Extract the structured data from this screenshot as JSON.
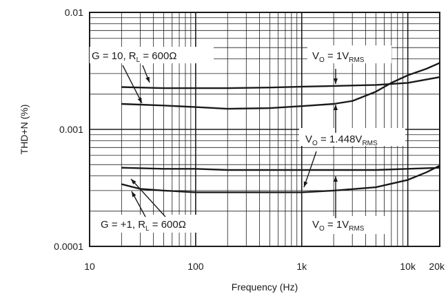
{
  "chart_data": {
    "type": "line",
    "xlabel": "Frequency (Hz)",
    "ylabel": "THD+N (%)",
    "x_scale": "log",
    "y_scale": "log",
    "xlim": [
      10,
      20000
    ],
    "ylim": [
      0.0001,
      0.01
    ],
    "grid": true,
    "x_ticks": [
      {
        "value": 10,
        "label": "10"
      },
      {
        "value": 100,
        "label": "100"
      },
      {
        "value": 1000,
        "label": "1k"
      },
      {
        "value": 10000,
        "label": "10k"
      },
      {
        "value": 20000,
        "label": "20k"
      }
    ],
    "y_ticks": [
      {
        "value": 0.01,
        "label": "0.01"
      },
      {
        "value": 0.001,
        "label": "0.001"
      },
      {
        "value": 0.0001,
        "label": "0.0001"
      }
    ],
    "series": [
      {
        "x": [
          20,
          50,
          100,
          200,
          500,
          1000,
          2000,
          5000,
          10000,
          20000
        ],
        "values": [
          0.0023,
          0.00225,
          0.00225,
          0.00225,
          0.00228,
          0.00232,
          0.00235,
          0.0024,
          0.0025,
          0.0028
        ]
      },
      {
        "x": [
          20,
          50,
          100,
          200,
          500,
          1000,
          2000,
          3000,
          5000,
          7000,
          10000,
          15000,
          20000
        ],
        "values": [
          0.00165,
          0.0016,
          0.00155,
          0.0015,
          0.00152,
          0.00158,
          0.00165,
          0.00175,
          0.0021,
          0.0025,
          0.0029,
          0.0033,
          0.0037
        ]
      },
      {
        "x": [
          20,
          50,
          100,
          200,
          500,
          1000,
          2000,
          5000,
          10000,
          20000
        ],
        "values": [
          0.00047,
          0.00046,
          0.00046,
          0.00045,
          0.00045,
          0.00045,
          0.00045,
          0.00045,
          0.00046,
          0.00047
        ]
      },
      {
        "x": [
          20,
          30,
          50,
          100,
          200,
          500,
          1000,
          2000,
          5000,
          10000,
          15000,
          20000
        ],
        "values": [
          0.00034,
          0.00031,
          0.0003,
          0.00029,
          0.00029,
          0.00029,
          0.00029,
          0.0003,
          0.00032,
          0.00037,
          0.00043,
          0.00049
        ]
      }
    ],
    "annotations": [
      {
        "id": "g10",
        "parts": [
          {
            "t": "G = 10, R"
          },
          {
            "t": "L",
            "sub": true
          },
          {
            "t": " = 600Ω"
          }
        ]
      },
      {
        "id": "vo1top",
        "parts": [
          {
            "t": "V"
          },
          {
            "t": "O",
            "sub": true
          },
          {
            "t": " = 1V"
          },
          {
            "t": "RMS",
            "sub": true
          }
        ]
      },
      {
        "id": "vo1448",
        "parts": [
          {
            "t": "V"
          },
          {
            "t": "O",
            "sub": true
          },
          {
            "t": " = 1.448V"
          },
          {
            "t": "RMS",
            "sub": true
          }
        ]
      },
      {
        "id": "g1",
        "parts": [
          {
            "t": "G = +1, R"
          },
          {
            "t": "L",
            "sub": true
          },
          {
            "t": " = 600Ω"
          }
        ]
      },
      {
        "id": "vo1bot",
        "parts": [
          {
            "t": "V"
          },
          {
            "t": "O",
            "sub": true
          },
          {
            "t": " = 1V"
          },
          {
            "t": "RMS",
            "sub": true
          }
        ]
      }
    ]
  }
}
